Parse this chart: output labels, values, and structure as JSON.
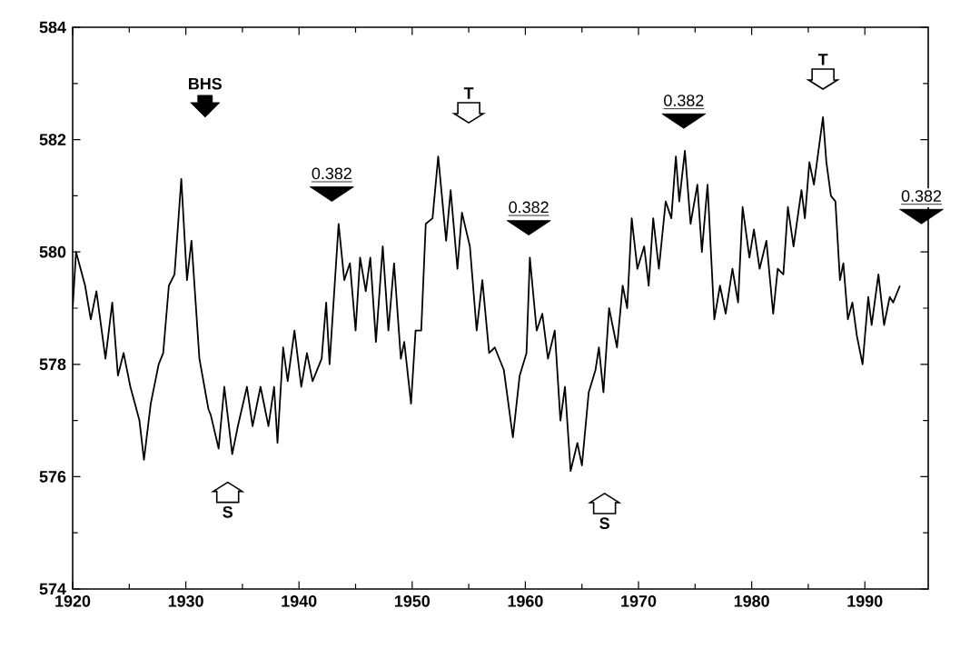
{
  "chart_data": {
    "type": "line",
    "xlim": [
      1920,
      1995.6
    ],
    "ylim": [
      574,
      584
    ],
    "xticks": [
      1920,
      1930,
      1940,
      1950,
      1960,
      1970,
      1980,
      1990
    ],
    "yticks": [
      574,
      576,
      578,
      580,
      582,
      584
    ],
    "marker": "none",
    "line_style": "solid",
    "series": [
      {
        "color": "#000000",
        "x": [
          1920,
          1920.3,
          1921.1,
          1921.6,
          1922.1,
          1922.9,
          1923.5,
          1924.0,
          1924.5,
          1925.1,
          1925.9,
          1926.3,
          1926.9,
          1927.6,
          1928.0,
          1928.5,
          1929.0,
          1929.6,
          1930.1,
          1930.5,
          1931.2,
          1932.0,
          1932.2,
          1932.9,
          1933.4,
          1934.1,
          1934.6,
          1935.4,
          1935.9,
          1936.6,
          1937.3,
          1937.8,
          1938.1,
          1938.6,
          1939.0,
          1939.6,
          1940.2,
          1940.7,
          1941.2,
          1942.0,
          1942.4,
          1942.7,
          1943.5,
          1944.0,
          1944.5,
          1945.0,
          1945.4,
          1945.9,
          1946.3,
          1946.8,
          1947.4,
          1947.9,
          1948.4,
          1949.0,
          1949.3,
          1949.9,
          1950.3,
          1950.8,
          1951.2,
          1951.8,
          1952.3,
          1953.0,
          1953.4,
          1954.0,
          1954.4,
          1955.1,
          1955.7,
          1956.2,
          1956.8,
          1957.3,
          1958.1,
          1958.9,
          1959.5,
          1960.1,
          1960.4,
          1961.0,
          1961.5,
          1962.0,
          1962.6,
          1963.1,
          1963.5,
          1964.0,
          1964.6,
          1965.0,
          1965.6,
          1966.2,
          1966.5,
          1966.9,
          1967.4,
          1968.1,
          1968.6,
          1969.0,
          1969.4,
          1969.9,
          1970.5,
          1970.9,
          1971.3,
          1971.8,
          1972.4,
          1972.9,
          1973.3,
          1973.6,
          1974.1,
          1974.6,
          1975.2,
          1975.6,
          1976.1,
          1976.7,
          1977.2,
          1977.7,
          1978.3,
          1978.8,
          1979.2,
          1979.8,
          1980.2,
          1980.7,
          1981.3,
          1981.9,
          1982.3,
          1982.8,
          1983.2,
          1983.7,
          1984.4,
          1984.7,
          1985.1,
          1985.5,
          1985.9,
          1986.3,
          1986.6,
          1987.0,
          1987.4,
          1987.8,
          1988.1,
          1988.5,
          1988.9,
          1989.3,
          1989.8,
          1990.3,
          1990.6,
          1991.2,
          1991.7,
          1992.2,
          1992.5,
          1993.1
        ],
        "values": [
          579.0,
          580.0,
          579.4,
          578.8,
          579.3,
          578.1,
          579.1,
          577.8,
          578.2,
          577.6,
          577.0,
          576.3,
          577.3,
          578.0,
          578.2,
          579.4,
          579.6,
          581.3,
          579.5,
          580.2,
          578.1,
          577.2,
          577.1,
          576.5,
          577.6,
          576.4,
          576.9,
          577.6,
          576.9,
          577.6,
          576.9,
          577.6,
          576.6,
          578.3,
          577.7,
          578.6,
          577.6,
          578.2,
          577.7,
          578.1,
          579.1,
          578.0,
          580.5,
          579.5,
          579.8,
          578.6,
          579.9,
          579.3,
          579.9,
          578.4,
          580.1,
          578.6,
          579.8,
          578.1,
          578.4,
          577.3,
          578.6,
          578.6,
          580.5,
          580.6,
          581.7,
          580.2,
          581.1,
          579.7,
          580.7,
          580.1,
          578.6,
          579.5,
          578.2,
          578.3,
          577.9,
          576.7,
          577.8,
          578.2,
          579.9,
          578.6,
          578.9,
          578.1,
          578.6,
          577.0,
          577.6,
          576.1,
          576.6,
          576.2,
          577.5,
          577.9,
          578.3,
          577.5,
          579.0,
          578.3,
          579.4,
          579.0,
          580.6,
          579.7,
          580.1,
          579.4,
          580.6,
          579.7,
          580.9,
          580.6,
          581.7,
          580.9,
          581.8,
          580.5,
          581.2,
          580.0,
          581.2,
          578.8,
          579.4,
          578.9,
          579.7,
          579.1,
          580.8,
          579.9,
          580.4,
          579.7,
          580.2,
          578.9,
          579.7,
          579.6,
          580.8,
          580.1,
          581.1,
          580.6,
          581.6,
          581.2,
          581.8,
          582.4,
          581.6,
          581.0,
          580.9,
          579.5,
          579.8,
          578.8,
          579.1,
          578.5,
          578.0,
          579.2,
          578.7,
          579.6,
          578.7,
          579.2,
          579.1,
          579.4
        ]
      }
    ],
    "annotations": [
      "BHS",
      "0.382",
      "T",
      "0.382",
      "0.382",
      "T",
      "0.382",
      "S",
      "S"
    ]
  }
}
